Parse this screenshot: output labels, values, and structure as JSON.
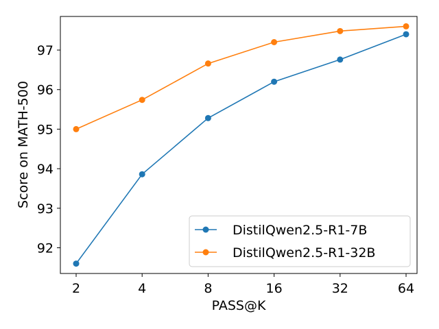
{
  "chart_data": {
    "type": "line",
    "x": [
      2,
      4,
      8,
      16,
      32,
      64
    ],
    "x_tick_labels": [
      "2",
      "4",
      "8",
      "16",
      "32",
      "64"
    ],
    "x_scale": "log2",
    "xlabel": "PASS@K",
    "ylabel": "Score on MATH-500",
    "ylim": [
      91.35,
      97.85
    ],
    "y_ticks": [
      92,
      93,
      94,
      95,
      96,
      97
    ],
    "y_tick_labels": [
      "92",
      "93",
      "94",
      "95",
      "96",
      "97"
    ],
    "grid": false,
    "legend_position": "lower-right",
    "series": [
      {
        "name": "DistilQwen2.5-R1-7B",
        "color": "#1f77b4",
        "values": [
          91.6,
          93.86,
          95.28,
          96.2,
          96.76,
          97.4
        ]
      },
      {
        "name": "DistilQwen2.5-R1-32B",
        "color": "#ff7f0e",
        "values": [
          95.0,
          95.74,
          96.66,
          97.2,
          97.48,
          97.6
        ]
      }
    ]
  }
}
